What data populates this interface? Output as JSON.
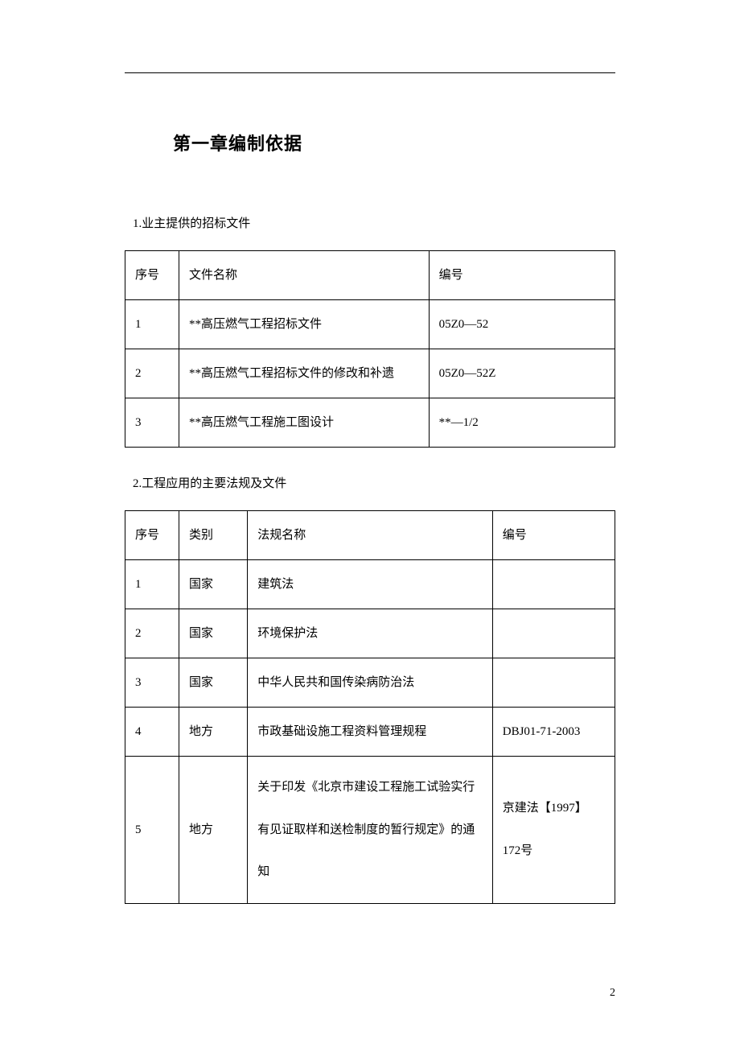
{
  "chapter_title": "第一章编制依据",
  "section1_heading": "1.业主提供的招标文件",
  "section2_heading": "2.工程应用的主要法规及文件",
  "table1": {
    "header": {
      "col1": "序号",
      "col2": "文件名称",
      "col3": "编号"
    },
    "rows": [
      {
        "col1": "1",
        "col2": "**高压燃气工程招标文件",
        "col3": "05Z0—52"
      },
      {
        "col1": "2",
        "col2": "**高压燃气工程招标文件的修改和补遗",
        "col3": "05Z0—52Z"
      },
      {
        "col1": "3",
        "col2": "**高压燃气工程施工图设计",
        "col3": "**—1/2"
      }
    ]
  },
  "table2": {
    "header": {
      "col1": "序号",
      "col2": "类别",
      "col3": "法规名称",
      "col4": "编号"
    },
    "rows": [
      {
        "col1": "1",
        "col2": "国家",
        "col3": "建筑法",
        "col4": ""
      },
      {
        "col1": "2",
        "col2": "国家",
        "col3": "环境保护法",
        "col4": ""
      },
      {
        "col1": "3",
        "col2": "国家",
        "col3": "中华人民共和国传染病防治法",
        "col4": ""
      },
      {
        "col1": "4",
        "col2": "地方",
        "col3": "市政基础设施工程资料管理规程",
        "col4": "DBJ01-71-2003"
      },
      {
        "col1": "5",
        "col2": "地方",
        "col3": "关于印发《北京市建设工程施工试验实行有见证取样和送检制度的暂行规定》的通知",
        "col4": "京建法【1997】 172号"
      }
    ]
  },
  "page_number": "2",
  "colors": {
    "text": "#000000",
    "border": "#000000",
    "background": "#ffffff"
  }
}
